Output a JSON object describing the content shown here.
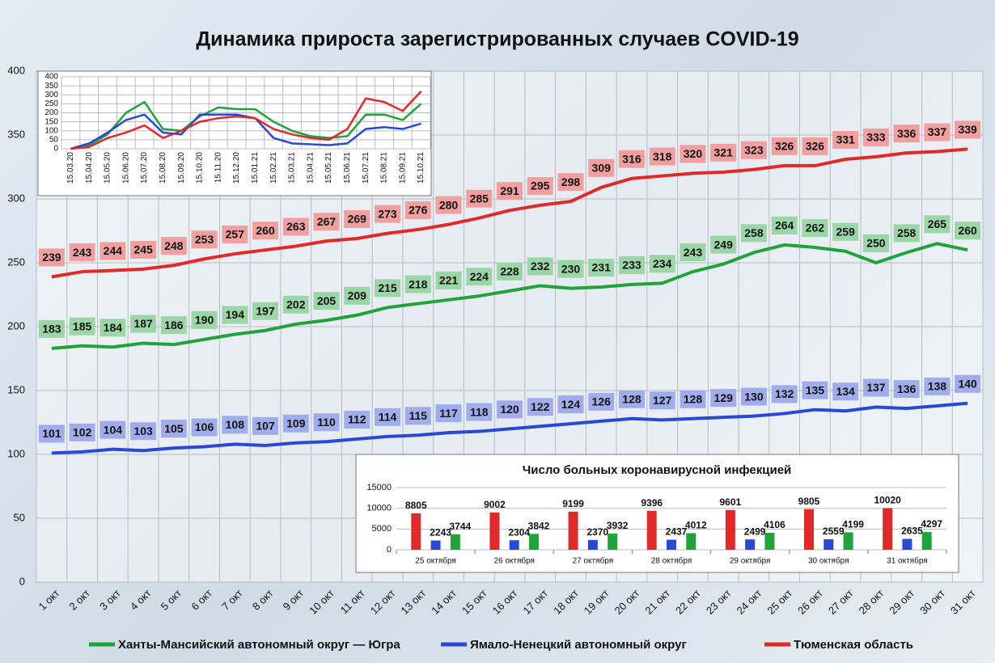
{
  "chart_data": [
    {
      "type": "line",
      "title": "Динамика прироста зарегистрированных случаев COVID-19",
      "categories": [
        "1 окт",
        "2 окт",
        "3 окт",
        "4 окт",
        "5 окт",
        "6 окт",
        "7 окт",
        "8 окт",
        "9 окт",
        "10 окт",
        "11 окт",
        "12 окт",
        "13 окт",
        "14 окт",
        "15 окт",
        "16 окт",
        "17 окт",
        "18 окт",
        "19 окт",
        "20 окт",
        "21 окт",
        "22 окт",
        "23 окт",
        "24 окт",
        "25 окт",
        "26 окт",
        "27 окт",
        "28 окт",
        "29 окт",
        "30 окт",
        "31 окт"
      ],
      "series": [
        {
          "name": "Ханты-Мансийский автономный округ — Югра",
          "color": "#1fa33a",
          "values": [
            183,
            185,
            184,
            187,
            186,
            190,
            194,
            197,
            202,
            205,
            209,
            215,
            218,
            221,
            224,
            228,
            232,
            230,
            231,
            233,
            234,
            243,
            249,
            258,
            264,
            262,
            259,
            250,
            258,
            265,
            260
          ]
        },
        {
          "name": "Ямало-Ненецкий автономный округ",
          "color": "#2a48d8",
          "values": [
            101,
            102,
            104,
            103,
            105,
            106,
            108,
            107,
            109,
            110,
            112,
            114,
            115,
            117,
            118,
            120,
            122,
            124,
            126,
            128,
            127,
            128,
            129,
            130,
            132,
            135,
            134,
            137,
            136,
            138,
            140
          ]
        },
        {
          "name": "Тюменская область",
          "color": "#e02a2a",
          "values": [
            239,
            243,
            244,
            245,
            248,
            253,
            257,
            260,
            263,
            267,
            269,
            273,
            276,
            280,
            285,
            291,
            295,
            298,
            309,
            316,
            318,
            320,
            321,
            323,
            326,
            326,
            331,
            333,
            336,
            337,
            339
          ]
        }
      ],
      "ylim": [
        0,
        400
      ],
      "yticks": [
        0,
        50,
        100,
        150,
        200,
        250,
        300,
        350,
        400
      ],
      "grid": true,
      "data_labels": true,
      "legend": "bottom"
    },
    {
      "type": "line",
      "categories": [
        "15.03.20",
        "15.04.20",
        "15.05.20",
        "15.06.20",
        "15.07.20",
        "15.08.20",
        "15.09.20",
        "15.10.20",
        "15.11.20",
        "15.12.20",
        "15.01.21",
        "15.02.21",
        "15.03.21",
        "15.04.21",
        "15.05.21",
        "15.06.21",
        "15.07.21",
        "15.08.21",
        "15.09.21",
        "15.10.21"
      ],
      "series": [
        {
          "color": "#1fa33a",
          "values": [
            0,
            20,
            80,
            200,
            260,
            110,
            100,
            180,
            230,
            220,
            220,
            150,
            100,
            70,
            60,
            70,
            190,
            190,
            160,
            250
          ]
        },
        {
          "color": "#2a48d8",
          "values": [
            0,
            30,
            90,
            160,
            190,
            90,
            80,
            190,
            190,
            190,
            170,
            60,
            30,
            25,
            20,
            30,
            110,
            120,
            110,
            140
          ]
        },
        {
          "color": "#e02a2a",
          "values": [
            0,
            10,
            60,
            90,
            130,
            60,
            100,
            150,
            170,
            180,
            170,
            110,
            80,
            60,
            50,
            110,
            280,
            260,
            210,
            320
          ]
        }
      ],
      "ylim": [
        0,
        400
      ],
      "yticks": [
        0,
        50,
        100,
        150,
        200,
        250,
        300,
        350,
        400
      ],
      "grid": true
    },
    {
      "type": "bar",
      "title": "Число больных коронавирусной  инфекцией",
      "categories": [
        "25 октября",
        "26 октября",
        "27 октября",
        "28 октября",
        "29 октября",
        "30 октября",
        "31 октября"
      ],
      "series": [
        {
          "color": "#e02a2a",
          "values": [
            8805,
            9002,
            9199,
            9396,
            9601,
            9805,
            10020
          ]
        },
        {
          "color": "#2a48d8",
          "values": [
            2243,
            2304,
            2370,
            2437,
            2499,
            2559,
            2635
          ]
        },
        {
          "color": "#1fa33a",
          "values": [
            3744,
            3842,
            3932,
            4012,
            4106,
            4199,
            4297
          ]
        }
      ],
      "ylim": [
        0,
        15000
      ],
      "yticks": [
        0,
        5000,
        10000,
        15000
      ],
      "grid": true,
      "data_labels": true
    }
  ]
}
